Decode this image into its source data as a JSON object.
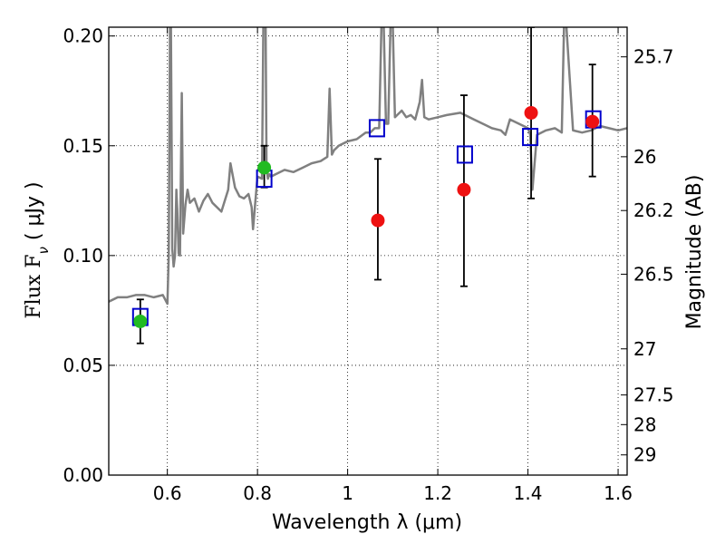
{
  "chart_data": {
    "type": "scatter",
    "xlabel": "Wavelength  λ (μm)",
    "ylabel": "Flux  F",
    "ylabel_sub": "ν",
    "ylabel_unit": "  ( μJy )",
    "y2label": "Magnitude (AB)",
    "xlim": [
      0.47,
      1.62
    ],
    "ylim": [
      0.0,
      0.204
    ],
    "grid": true,
    "x_ticks": [
      0.6,
      0.8,
      1.0,
      1.2,
      1.4,
      1.6
    ],
    "x_tick_labels": [
      "0.6",
      "0.8",
      "1",
      "1.2",
      "1.4",
      "1.6"
    ],
    "y_ticks": [
      0.0,
      0.05,
      0.1,
      0.15,
      0.2
    ],
    "y_tick_labels": [
      "0.00",
      "0.05",
      "0.10",
      "0.15",
      "0.20"
    ],
    "y2_ticks": [
      {
        "label": "25.7",
        "flux": 0.1905
      },
      {
        "label": "26",
        "flux": 0.145
      },
      {
        "label": "26.2",
        "flux": 0.1205
      },
      {
        "label": "26.5",
        "flux": 0.0915
      },
      {
        "label": "27",
        "flux": 0.0575
      },
      {
        "label": "27.5",
        "flux": 0.0365
      },
      {
        "label": "28",
        "flux": 0.023
      },
      {
        "label": "29",
        "flux": 0.0092
      }
    ],
    "series": [
      {
        "kind": "line",
        "color": "#808080",
        "x": [
          0.47,
          0.49,
          0.51,
          0.53,
          0.55,
          0.57,
          0.59,
          0.6,
          0.603,
          0.606,
          0.608,
          0.611,
          0.614,
          0.617,
          0.62,
          0.622,
          0.625,
          0.628,
          0.632,
          0.635,
          0.64,
          0.645,
          0.65,
          0.66,
          0.67,
          0.68,
          0.69,
          0.7,
          0.72,
          0.735,
          0.74,
          0.75,
          0.76,
          0.77,
          0.78,
          0.787,
          0.79,
          0.8,
          0.81,
          0.813,
          0.818,
          0.82,
          0.823,
          0.826,
          0.83,
          0.84,
          0.86,
          0.88,
          0.9,
          0.92,
          0.94,
          0.955,
          0.96,
          0.965,
          0.97,
          0.98,
          1.0,
          1.02,
          1.04,
          1.05,
          1.06,
          1.07,
          1.075,
          1.08,
          1.085,
          1.09,
          1.095,
          1.1,
          1.105,
          1.11,
          1.12,
          1.13,
          1.14,
          1.15,
          1.16,
          1.165,
          1.17,
          1.18,
          1.2,
          1.22,
          1.25,
          1.28,
          1.3,
          1.32,
          1.34,
          1.35,
          1.36,
          1.38,
          1.4,
          1.405,
          1.41,
          1.42,
          1.44,
          1.46,
          1.475,
          1.48,
          1.485,
          1.5,
          1.52,
          1.54,
          1.56,
          1.58,
          1.6,
          1.62
        ],
        "y": [
          0.079,
          0.081,
          0.081,
          0.082,
          0.082,
          0.081,
          0.082,
          0.078,
          0.1,
          0.205,
          0.205,
          0.103,
          0.095,
          0.1,
          0.13,
          0.121,
          0.101,
          0.1,
          0.174,
          0.11,
          0.123,
          0.13,
          0.124,
          0.126,
          0.12,
          0.125,
          0.128,
          0.124,
          0.12,
          0.13,
          0.142,
          0.131,
          0.127,
          0.126,
          0.128,
          0.122,
          0.112,
          0.136,
          0.135,
          0.205,
          0.205,
          0.14,
          0.135,
          0.137,
          0.136,
          0.137,
          0.139,
          0.138,
          0.14,
          0.142,
          0.143,
          0.145,
          0.176,
          0.146,
          0.148,
          0.15,
          0.152,
          0.153,
          0.156,
          0.156,
          0.158,
          0.158,
          0.205,
          0.205,
          0.16,
          0.16,
          0.205,
          0.205,
          0.163,
          0.164,
          0.166,
          0.163,
          0.164,
          0.162,
          0.17,
          0.18,
          0.163,
          0.162,
          0.163,
          0.164,
          0.165,
          0.162,
          0.16,
          0.158,
          0.157,
          0.155,
          0.162,
          0.16,
          0.158,
          0.155,
          0.13,
          0.155,
          0.157,
          0.158,
          0.156,
          0.205,
          0.205,
          0.157,
          0.156,
          0.157,
          0.159,
          0.158,
          0.157,
          0.158
        ]
      },
      {
        "kind": "markers",
        "marker": "square",
        "color": "#0000cc",
        "x": [
          0.54,
          0.815,
          1.065,
          1.26,
          1.405,
          1.545
        ],
        "y": [
          0.072,
          0.135,
          0.158,
          0.146,
          0.154,
          0.162
        ]
      },
      {
        "kind": "markers",
        "marker": "circle",
        "color": "#22bb22",
        "x": [
          0.54,
          0.815
        ],
        "y": [
          0.07,
          0.14
        ],
        "err_lo": [
          0.06,
          0.131
        ],
        "err_hi": [
          0.08,
          0.15
        ]
      },
      {
        "kind": "markers",
        "marker": "circle",
        "color": "#ee1111",
        "x": [
          1.067,
          1.258,
          1.407,
          1.543
        ],
        "y": [
          0.116,
          0.13,
          0.165,
          0.161
        ],
        "err_lo": [
          0.089,
          0.086,
          0.126,
          0.136
        ],
        "err_hi": [
          0.144,
          0.173,
          0.204,
          0.187
        ]
      }
    ]
  }
}
